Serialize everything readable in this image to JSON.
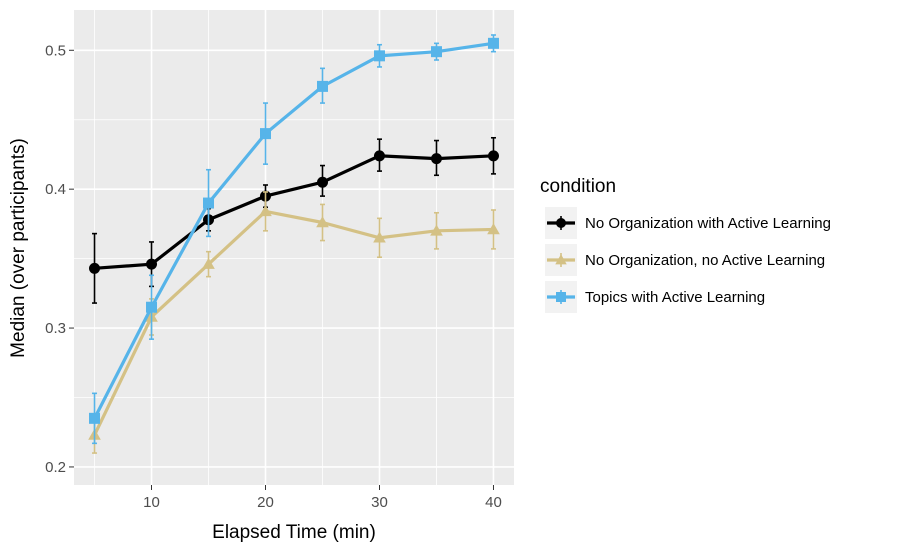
{
  "chart_data": {
    "type": "line",
    "xlabel": "Elapsed Time (min)",
    "ylabel": "Median (over participants)",
    "x": [
      5,
      10,
      15,
      20,
      25,
      30,
      35,
      40
    ],
    "xlim": [
      3.2,
      41.8
    ],
    "ylim": [
      0.187,
      0.529
    ],
    "xticks": [
      10,
      20,
      30,
      40
    ],
    "yticks": [
      0.2,
      0.3,
      0.4,
      0.5
    ],
    "xtick_labels": [
      "10",
      "20",
      "30",
      "40"
    ],
    "ytick_labels": [
      "0.2",
      "0.3",
      "0.4",
      "0.5"
    ],
    "grid": true,
    "legend": {
      "title": "condition",
      "position": "right"
    },
    "series": [
      {
        "name": "No Organization with Active Learning",
        "color": "#000000",
        "marker": "circle",
        "values": [
          0.343,
          0.346,
          0.378,
          0.395,
          0.405,
          0.424,
          0.422,
          0.424
        ],
        "err_low": [
          0.318,
          0.33,
          0.37,
          0.387,
          0.395,
          0.413,
          0.41,
          0.411
        ],
        "err_high": [
          0.368,
          0.362,
          0.386,
          0.403,
          0.417,
          0.436,
          0.435,
          0.437
        ]
      },
      {
        "name": "No Organization, no Active Learning",
        "color": "#d4c185",
        "marker": "triangle",
        "values": [
          0.223,
          0.308,
          0.346,
          0.384,
          0.376,
          0.365,
          0.37,
          0.371
        ],
        "err_low": [
          0.21,
          0.295,
          0.337,
          0.37,
          0.363,
          0.351,
          0.357,
          0.357
        ],
        "err_high": [
          0.236,
          0.321,
          0.355,
          0.398,
          0.389,
          0.379,
          0.383,
          0.385
        ]
      },
      {
        "name": "Topics with Active Learning",
        "color": "#56b4e9",
        "marker": "square",
        "values": [
          0.235,
          0.315,
          0.39,
          0.44,
          0.474,
          0.496,
          0.499,
          0.505
        ],
        "err_low": [
          0.217,
          0.292,
          0.366,
          0.418,
          0.462,
          0.488,
          0.493,
          0.499
        ],
        "err_high": [
          0.253,
          0.338,
          0.414,
          0.462,
          0.487,
          0.504,
          0.505,
          0.511
        ]
      }
    ]
  }
}
